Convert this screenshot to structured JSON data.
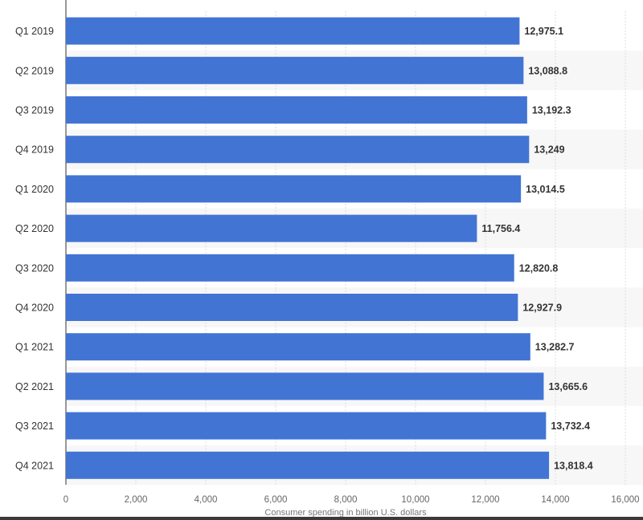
{
  "chart_data": {
    "type": "bar",
    "orientation": "horizontal",
    "categories": [
      "Q1 2019",
      "Q2 2019",
      "Q3 2019",
      "Q4 2019",
      "Q1 2020",
      "Q2 2020",
      "Q3 2020",
      "Q4 2020",
      "Q1 2021",
      "Q2 2021",
      "Q3 2021",
      "Q4 2021"
    ],
    "values": [
      12975.1,
      13088.8,
      13192.3,
      13249,
      13014.5,
      11756.4,
      12820.8,
      12927.9,
      13282.7,
      13665.6,
      13732.4,
      13818.4
    ],
    "value_labels": [
      "12,975.1",
      "13,088.8",
      "13,192.3",
      "13,249",
      "13,014.5",
      "11,756.4",
      "12,820.8",
      "12,927.9",
      "13,282.7",
      "13,665.6",
      "13,732.4",
      "13,818.4"
    ],
    "xlabel": "Consumer spending in billion U.S. dollars",
    "xlim": [
      0,
      16000
    ],
    "xticks": [
      0,
      2000,
      4000,
      6000,
      8000,
      10000,
      12000,
      14000,
      16000
    ],
    "xtick_labels": [
      "0",
      "2,000",
      "4,000",
      "6,000",
      "8,000",
      "10,000",
      "12,000",
      "14,000",
      "16,000"
    ],
    "grid": true,
    "colors": {
      "bar": "#4274d4",
      "band": "#f7f7f7",
      "grid": "#dcdcdc"
    }
  }
}
